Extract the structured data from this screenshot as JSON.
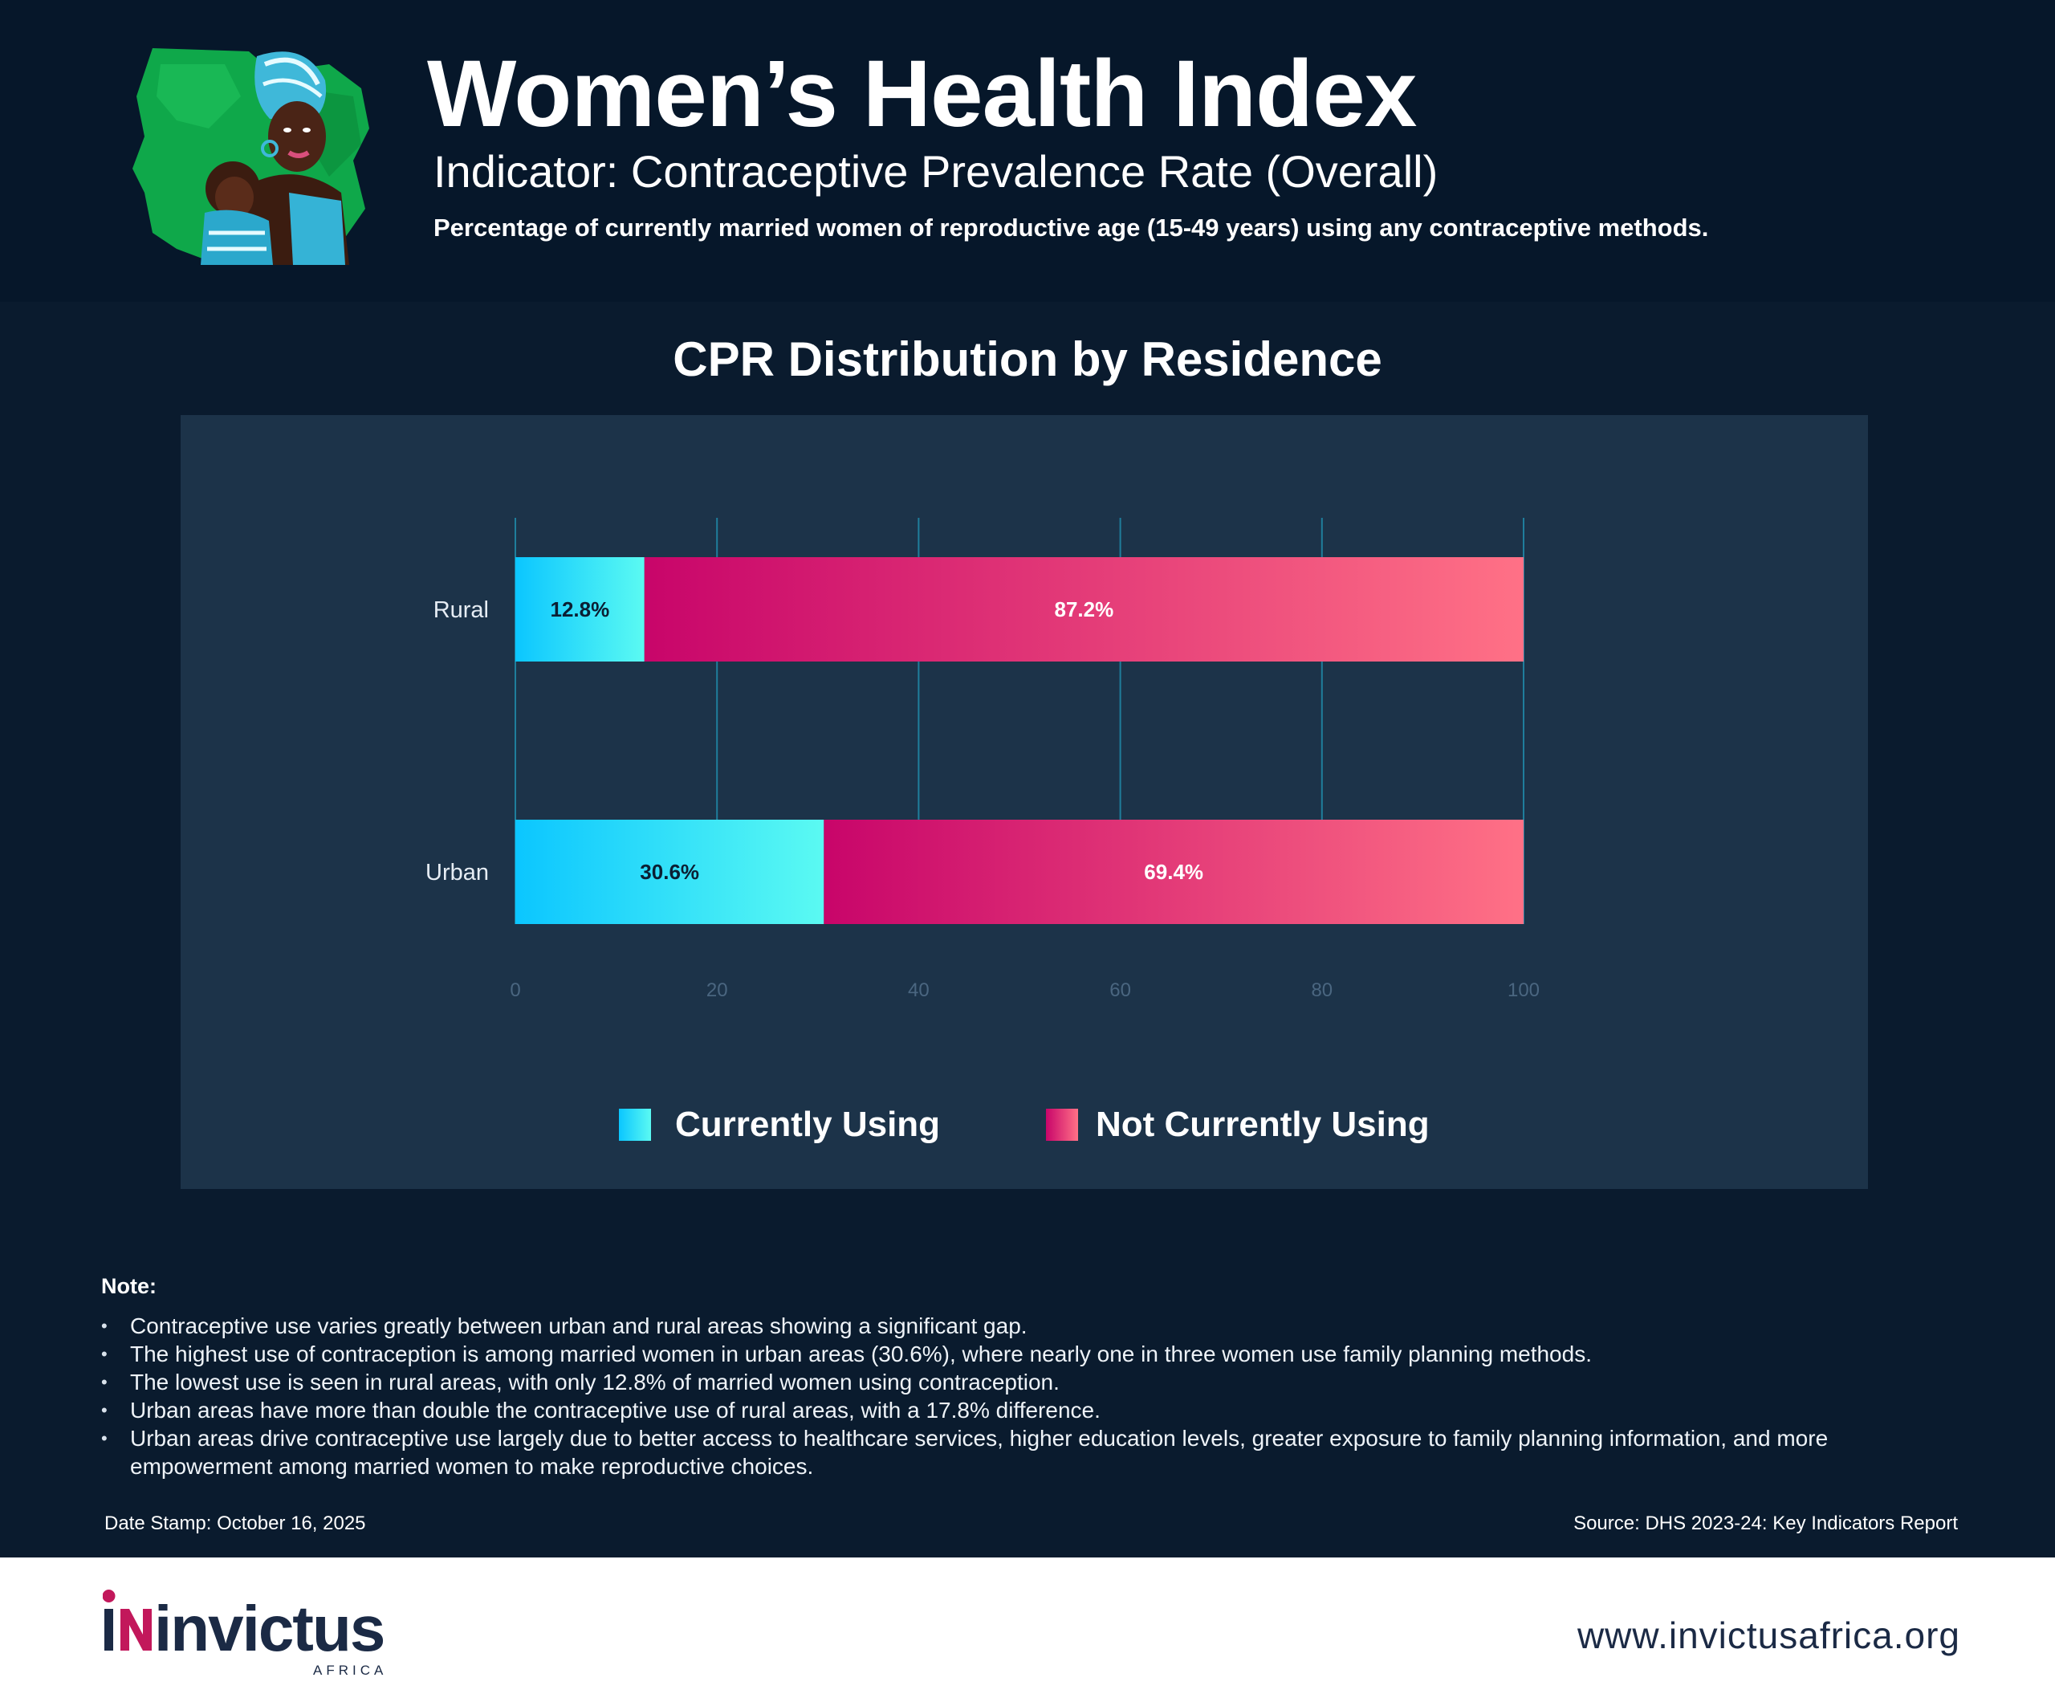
{
  "header": {
    "title": "Women’s Health Index",
    "indicator": "Indicator: Contraceptive Prevalence Rate (Overall)",
    "definition": "Percentage of currently married women of reproductive age (15-49 years) using any contraceptive methods."
  },
  "chart_heading": "CPR Distribution by Residence",
  "chart_data": {
    "type": "bar",
    "orientation": "horizontal",
    "stacked": true,
    "title": "CPR Distribution by Residence",
    "xlabel": "",
    "ylabel": "",
    "categories": [
      "Rural",
      "Urban"
    ],
    "series": [
      {
        "name": "Currently Using",
        "values": [
          12.8,
          30.6
        ],
        "labels": [
          "12.8%",
          "30.6%"
        ],
        "color": "#19cfff"
      },
      {
        "name": "Not Currently Using",
        "values": [
          87.2,
          69.4
        ],
        "labels": [
          "87.2%",
          "69.4%"
        ],
        "color": "#e2256f"
      }
    ],
    "xlim": [
      0,
      100
    ],
    "xticks": [
      0,
      20,
      40,
      60,
      80,
      100
    ],
    "grid": true,
    "legend_position": "bottom-center"
  },
  "notes": {
    "title": "Note:",
    "items": [
      "Contraceptive use varies greatly between urban and rural areas showing a significant gap.",
      "The highest use of contraception is among married women in urban areas (30.6%), where nearly one in three women use family planning methods.",
      "The lowest use is seen in rural areas, with only 12.8% of married women using contraception.",
      "Urban areas have more than double the contraceptive use of rural areas, with a 17.8% difference.",
      "Urban areas drive contraceptive use largely due to better access to healthcare services, higher education levels, greater exposure to family planning information, and more empowerment among married women to make reproductive choices."
    ]
  },
  "date_stamp": "Date Stamp: October 16, 2025",
  "source": "Source: DHS 2023-24: Key Indicators Report",
  "footer": {
    "brand": "invictus",
    "brand_sub": "AFRICA",
    "website": "www.invictusafrica.org"
  },
  "colors": {
    "header_bg": "#06172a",
    "page_bg": "#0a1b2e",
    "panel_bg": "#1c3349",
    "using": "#19cfff",
    "not_using": "#e2256f",
    "brand_navy": "#1b2a45",
    "brand_magenta": "#c2185b"
  }
}
